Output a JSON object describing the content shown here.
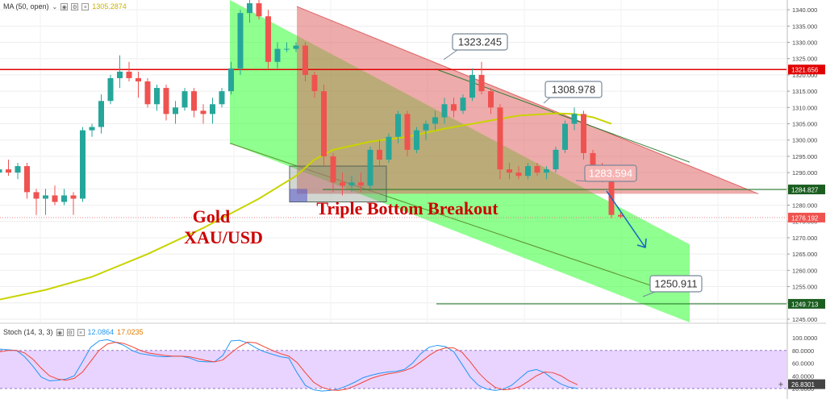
{
  "main_header": {
    "indicator": "MA (50, open)",
    "value": "1305.2874"
  },
  "stoch_header": {
    "indicator": "Stoch (14, 3, 3)",
    "value_k": "12.0864",
    "value_d": "17.0235"
  },
  "annotations": {
    "instrument_line1": "Gold",
    "instrument_line2": "XAU/USD",
    "pattern": "Triple Bottom Breakout"
  },
  "colors": {
    "bull": "#26a69a",
    "bear": "#ef5350",
    "ma": "#c8d400",
    "channel_fill": "#33ff33",
    "triangle_fill": "#e06666",
    "resistance": "#e00000",
    "support": "#2e7d32",
    "stoch_k": "#2196f3",
    "stoch_d": "#f44336",
    "stoch_band": "#d9b8ff",
    "annotation_text": "#cc0000",
    "arrow": "#1565c0"
  },
  "chart_data": [
    {
      "type": "candlestick",
      "title": "",
      "ylim": [
        1244,
        1343
      ],
      "y_ticks": [
        "1340.000",
        "1335.000",
        "1330.000",
        "1325.000",
        "1320.000",
        "1315.000",
        "1310.000",
        "1305.000",
        "1300.000",
        "1295.000",
        "1290.000",
        "1285.000",
        "1280.000",
        "1275.000",
        "1270.000",
        "1265.000",
        "1260.000",
        "1255.000",
        "1250.000",
        "1245.000"
      ],
      "y_tick_values": [
        1340,
        1335,
        1330,
        1325,
        1320,
        1315,
        1310,
        1305,
        1300,
        1295,
        1290,
        1285,
        1280,
        1275,
        1270,
        1265,
        1260,
        1255,
        1250,
        1245
      ],
      "candles": [
        {
          "o": 1290,
          "h": 1293,
          "l": 1287,
          "c": 1291
        },
        {
          "o": 1291,
          "h": 1294,
          "l": 1289,
          "c": 1290
        },
        {
          "o": 1290,
          "h": 1293,
          "l": 1288,
          "c": 1292
        },
        {
          "o": 1292,
          "h": 1293,
          "l": 1282,
          "c": 1284
        },
        {
          "o": 1284,
          "h": 1285,
          "l": 1277,
          "c": 1282
        },
        {
          "o": 1282,
          "h": 1285,
          "l": 1277,
          "c": 1283
        },
        {
          "o": 1283,
          "h": 1286,
          "l": 1280,
          "c": 1281
        },
        {
          "o": 1281,
          "h": 1285,
          "l": 1280,
          "c": 1283
        },
        {
          "o": 1283,
          "h": 1284,
          "l": 1277,
          "c": 1282
        },
        {
          "o": 1282,
          "h": 1304,
          "l": 1281,
          "c": 1303
        },
        {
          "o": 1303,
          "h": 1305,
          "l": 1301,
          "c": 1304
        },
        {
          "o": 1304,
          "h": 1314,
          "l": 1302,
          "c": 1312
        },
        {
          "o": 1312,
          "h": 1320,
          "l": 1311,
          "c": 1319
        },
        {
          "o": 1319,
          "h": 1326,
          "l": 1316,
          "c": 1321
        },
        {
          "o": 1321,
          "h": 1324,
          "l": 1318,
          "c": 1319
        },
        {
          "o": 1319,
          "h": 1321,
          "l": 1313,
          "c": 1318
        },
        {
          "o": 1318,
          "h": 1319,
          "l": 1310,
          "c": 1311
        },
        {
          "o": 1311,
          "h": 1317,
          "l": 1309,
          "c": 1316
        },
        {
          "o": 1316,
          "h": 1317,
          "l": 1306,
          "c": 1308
        },
        {
          "o": 1308,
          "h": 1312,
          "l": 1305,
          "c": 1310
        },
        {
          "o": 1310,
          "h": 1316,
          "l": 1309,
          "c": 1315
        },
        {
          "o": 1315,
          "h": 1316,
          "l": 1307,
          "c": 1309
        },
        {
          "o": 1309,
          "h": 1311,
          "l": 1305,
          "c": 1308
        },
        {
          "o": 1308,
          "h": 1313,
          "l": 1305,
          "c": 1311
        },
        {
          "o": 1311,
          "h": 1316,
          "l": 1310,
          "c": 1315
        },
        {
          "o": 1315,
          "h": 1324,
          "l": 1314,
          "c": 1322
        },
        {
          "o": 1322,
          "h": 1340,
          "l": 1320,
          "c": 1339
        },
        {
          "o": 1339,
          "h": 1343,
          "l": 1336,
          "c": 1342
        },
        {
          "o": 1342,
          "h": 1343,
          "l": 1337,
          "c": 1338
        },
        {
          "o": 1338,
          "h": 1340,
          "l": 1322,
          "c": 1324
        },
        {
          "o": 1324,
          "h": 1330,
          "l": 1322,
          "c": 1328
        },
        {
          "o": 1328,
          "h": 1330,
          "l": 1327,
          "c": 1328
        },
        {
          "o": 1328,
          "h": 1330,
          "l": 1327,
          "c": 1329
        },
        {
          "o": 1329,
          "h": 1330,
          "l": 1318,
          "c": 1320
        },
        {
          "o": 1320,
          "h": 1321,
          "l": 1313,
          "c": 1315
        },
        {
          "o": 1315,
          "h": 1317,
          "l": 1292,
          "c": 1295
        },
        {
          "o": 1295,
          "h": 1296,
          "l": 1284,
          "c": 1287
        },
        {
          "o": 1287,
          "h": 1290,
          "l": 1283,
          "c": 1286
        },
        {
          "o": 1286,
          "h": 1289,
          "l": 1284,
          "c": 1287
        },
        {
          "o": 1287,
          "h": 1290,
          "l": 1284,
          "c": 1286
        },
        {
          "o": 1286,
          "h": 1298,
          "l": 1285,
          "c": 1297
        },
        {
          "o": 1297,
          "h": 1300,
          "l": 1292,
          "c": 1294
        },
        {
          "o": 1294,
          "h": 1302,
          "l": 1293,
          "c": 1301
        },
        {
          "o": 1301,
          "h": 1309,
          "l": 1299,
          "c": 1308
        },
        {
          "o": 1308,
          "h": 1309,
          "l": 1295,
          "c": 1297
        },
        {
          "o": 1297,
          "h": 1304,
          "l": 1296,
          "c": 1303
        },
        {
          "o": 1303,
          "h": 1306,
          "l": 1300,
          "c": 1305
        },
        {
          "o": 1305,
          "h": 1309,
          "l": 1303,
          "c": 1307
        },
        {
          "o": 1307,
          "h": 1313,
          "l": 1305,
          "c": 1311
        },
        {
          "o": 1311,
          "h": 1313,
          "l": 1307,
          "c": 1309
        },
        {
          "o": 1309,
          "h": 1314,
          "l": 1308,
          "c": 1313
        },
        {
          "o": 1313,
          "h": 1322,
          "l": 1312,
          "c": 1320
        },
        {
          "o": 1320,
          "h": 1324,
          "l": 1314,
          "c": 1315
        },
        {
          "o": 1315,
          "h": 1316,
          "l": 1308,
          "c": 1310
        },
        {
          "o": 1310,
          "h": 1311,
          "l": 1288,
          "c": 1291
        },
        {
          "o": 1291,
          "h": 1293,
          "l": 1288,
          "c": 1290
        },
        {
          "o": 1290,
          "h": 1292,
          "l": 1288,
          "c": 1289
        },
        {
          "o": 1289,
          "h": 1293,
          "l": 1288,
          "c": 1292
        },
        {
          "o": 1292,
          "h": 1293,
          "l": 1289,
          "c": 1290
        },
        {
          "o": 1290,
          "h": 1292,
          "l": 1288,
          "c": 1291
        },
        {
          "o": 1291,
          "h": 1298,
          "l": 1290,
          "c": 1297
        },
        {
          "o": 1297,
          "h": 1306,
          "l": 1296,
          "c": 1305
        },
        {
          "o": 1305,
          "h": 1310,
          "l": 1303,
          "c": 1308
        },
        {
          "o": 1308,
          "h": 1309,
          "l": 1294,
          "c": 1296
        },
        {
          "o": 1296,
          "h": 1297,
          "l": 1290,
          "c": 1292
        },
        {
          "o": 1292,
          "h": 1293,
          "l": 1287,
          "c": 1289
        },
        {
          "o": 1289,
          "h": 1290,
          "l": 1276,
          "c": 1277
        },
        {
          "o": 1277,
          "h": 1278,
          "l": 1276,
          "c": 1276.5
        }
      ],
      "ma_points": [
        [
          -30,
          1246
        ],
        [
          -10,
          1249
        ],
        [
          0,
          1251
        ],
        [
          5,
          1254
        ],
        [
          10,
          1258
        ],
        [
          16,
          1265
        ],
        [
          22,
          1273
        ],
        [
          28,
          1282
        ],
        [
          32,
          1289
        ],
        [
          34,
          1294
        ],
        [
          36,
          1297
        ],
        [
          40,
          1299.5
        ],
        [
          44,
          1301
        ],
        [
          48,
          1303.5
        ],
        [
          52,
          1305.5
        ],
        [
          56,
          1307.5
        ],
        [
          60,
          1308.2
        ],
        [
          62,
          1308
        ],
        [
          64,
          1307
        ],
        [
          66,
          1305
        ]
      ],
      "channel_upper": [
        [
          28,
          1348
        ],
        [
          57,
          1298
        ]
      ],
      "channel_lower": [
        [
          28,
          1296
        ],
        [
          81,
          1245
        ]
      ],
      "triangle": {
        "apex_top": [
          37,
          1341
        ],
        "right": [
          93,
          1283.5
        ],
        "base_left": [
          37,
          1283.5
        ]
      },
      "triple_bottom_box": {
        "x0": 36,
        "x1": 47,
        "y0": 1281,
        "y1": 1292
      },
      "left_box": {
        "x0": 36,
        "x1": 38,
        "y0": 1281,
        "y1": 1285
      },
      "resistance": {
        "value": 1321.656,
        "label": "1321.656"
      },
      "support": {
        "value": 1284.827,
        "label": "1284.827"
      },
      "target_line": {
        "value": 1249.713,
        "label": "1249.713",
        "x_start": 54
      },
      "current_price": {
        "value": 1276.192,
        "label": "1276.192"
      },
      "callouts": [
        {
          "text": "1323.245",
          "anchor": [
            54,
            1325
          ],
          "box": [
            1322.5
          ]
        },
        {
          "text": "1308.978",
          "anchor": [
            66,
            1310
          ],
          "box": [
            1315
          ]
        },
        {
          "text": "1283.594",
          "anchor": [
            70,
            1285.5
          ],
          "box": [
            1289.5
          ]
        },
        {
          "text": "1250.911",
          "anchor": [
            79,
            1250.5
          ],
          "box": [
            1255.5
          ]
        }
      ],
      "projection_arrow": {
        "from": [
          72,
          1282
        ],
        "to": [
          79,
          1268
        ]
      }
    },
    {
      "type": "line",
      "title": "",
      "ylim": [
        20,
        100
      ],
      "y_ticks": [
        "100.0000",
        "80.0000",
        "60.0000",
        "40.0000",
        "20.0000"
      ],
      "y_tick_values": [
        100,
        80,
        60,
        40,
        20
      ],
      "band": [
        20,
        80
      ],
      "current_label": "26.8301",
      "current_value": 26.83,
      "series": [
        {
          "values": [
            82,
            81,
            80,
            70,
            55,
            38,
            32,
            33,
            35,
            40,
            62,
            85,
            95,
            97,
            93,
            88,
            80,
            75,
            73,
            71,
            70,
            71,
            71,
            68,
            63,
            62,
            62,
            72,
            95,
            96,
            92,
            84,
            78,
            74,
            70,
            68,
            45,
            25,
            18,
            16,
            17,
            19,
            24,
            30,
            37,
            41,
            44,
            46,
            47,
            50,
            60,
            75,
            85,
            88,
            86,
            78,
            58,
            38,
            25,
            19,
            17,
            19,
            25,
            36,
            47,
            50,
            45,
            35,
            27,
            22,
            20
          ]
        },
        {
          "values": [
            78,
            80,
            80,
            76,
            66,
            52,
            40,
            35,
            33,
            36,
            46,
            63,
            80,
            90,
            93,
            91,
            86,
            80,
            76,
            74,
            72,
            71,
            71,
            70,
            67,
            64,
            62,
            65,
            76,
            86,
            93,
            92,
            86,
            80,
            75,
            71,
            61,
            45,
            30,
            22,
            18,
            17,
            19,
            24,
            30,
            36,
            40,
            43,
            45,
            48,
            53,
            62,
            72,
            80,
            84,
            84,
            77,
            62,
            45,
            32,
            22,
            18,
            19,
            23,
            31,
            40,
            46,
            45,
            40,
            32,
            26
          ]
        }
      ]
    }
  ]
}
